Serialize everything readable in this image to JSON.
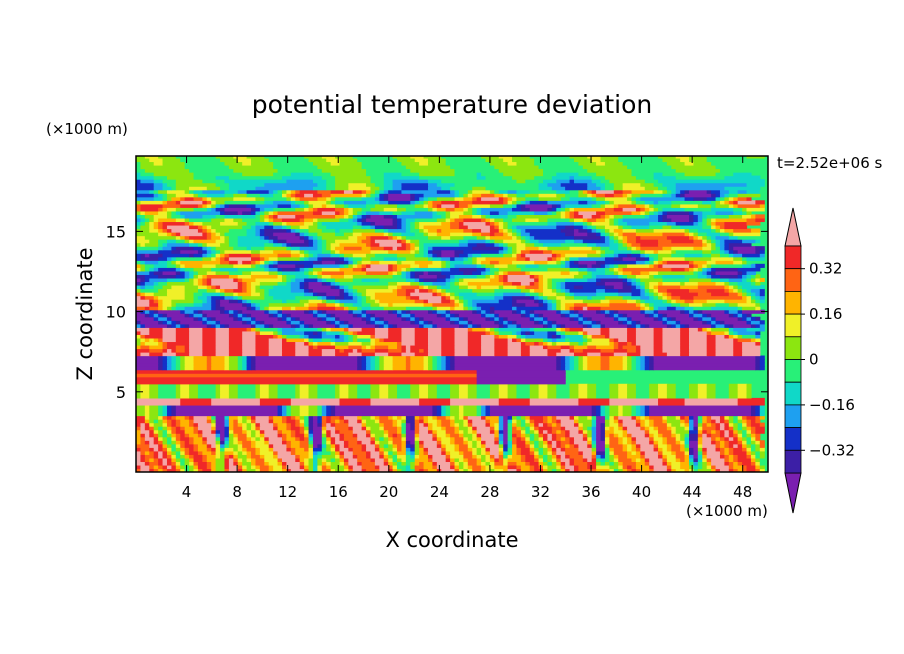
{
  "chart_data": {
    "type": "heatmap",
    "title": "potential temperature deviation",
    "xlabel": "X coordinate",
    "ylabel": "Z coordinate",
    "x_unit": "(×1000 m)",
    "y_unit": "(×1000 m)",
    "time_label": "t=2.52e+06 s",
    "xlim": [
      0,
      50
    ],
    "ylim": [
      0,
      19.7
    ],
    "x_ticks": [
      4,
      8,
      12,
      16,
      20,
      24,
      28,
      32,
      36,
      40,
      44,
      48
    ],
    "y_ticks": [
      5,
      10,
      15
    ],
    "colorbar": {
      "levels": [
        -0.4,
        -0.32,
        -0.24,
        -0.16,
        -0.08,
        0,
        0.08,
        0.16,
        0.24,
        0.32,
        0.4
      ],
      "tick_labels": [
        "0.32",
        "0.16",
        "0",
        "−0.16",
        "−0.32"
      ],
      "tick_values": [
        0.32,
        0.16,
        0,
        -0.16,
        -0.32
      ],
      "colors": [
        "#7a1fb0",
        "#3c1fa6",
        "#1430c8",
        "#1ea0f0",
        "#10d8c8",
        "#28f078",
        "#8ce610",
        "#f0f028",
        "#ffb400",
        "#ff6414",
        "#f02828",
        "#f4a6a6"
      ],
      "extend": "both"
    },
    "bands": [
      {
        "z_range": [
          19.7,
          17.5
        ],
        "note": "green/teal near zero with wave patterns"
      },
      {
        "z_range": [
          17.5,
          10.2
        ],
        "note": "alternating purple/pink tilted lenses"
      },
      {
        "z_range": [
          10.2,
          4.6
        ],
        "note": "pink and purple horizontal layers"
      },
      {
        "z_range": [
          4.2,
          3.6
        ],
        "note": "purple stripe with pink patches"
      },
      {
        "z_range": [
          3.6,
          0
        ],
        "note": "orange/red with purple plumes"
      }
    ]
  }
}
